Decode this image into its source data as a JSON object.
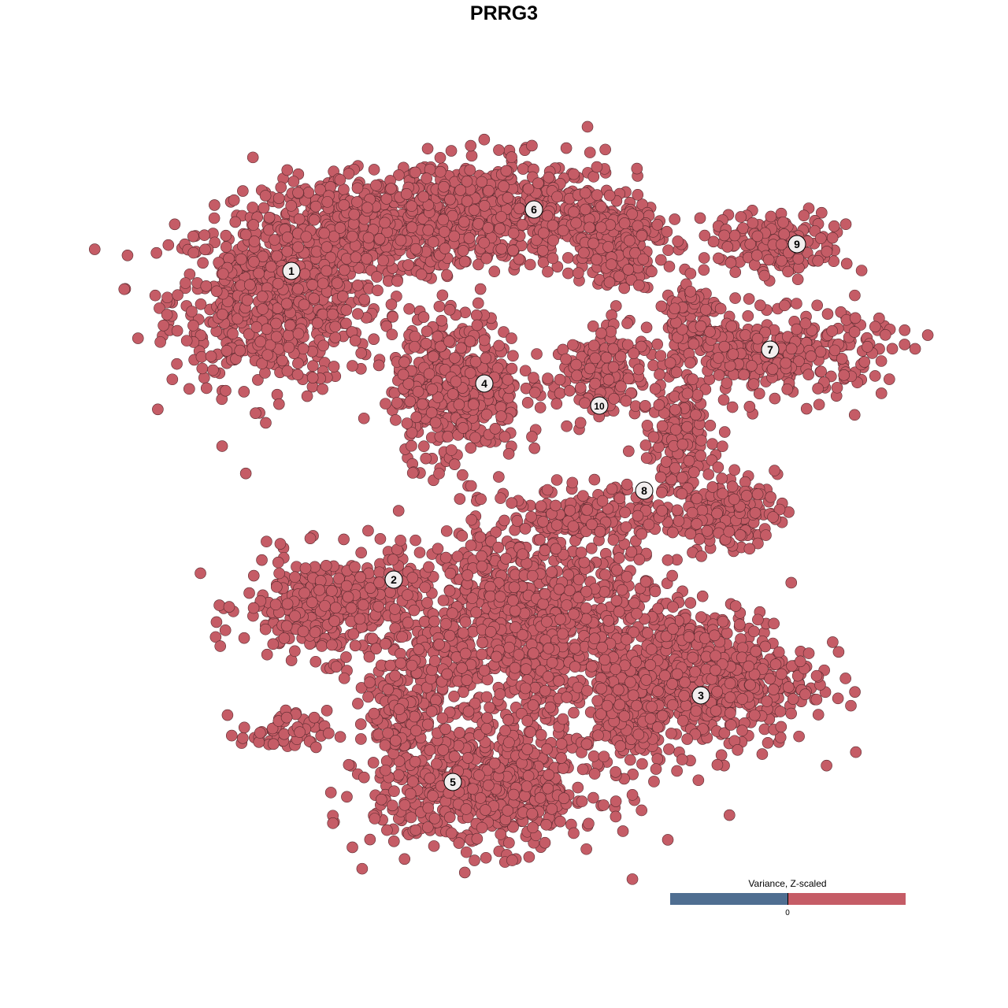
{
  "chart_data": {
    "type": "scatter",
    "title": "PRRG3",
    "xlabel": "",
    "ylabel": "",
    "axes_visible": false,
    "grid": false,
    "point_color": "#c55c66",
    "point_edge_color": "#5a2a2f",
    "clusters": [
      {
        "label": "1",
        "label_pos": [
          -27,
          29.6
        ],
        "blobs": [
          {
            "center": [
              -29,
              26
            ],
            "spread": [
              12,
              10
            ],
            "n": 700
          },
          {
            "center": [
              -17,
              35
            ],
            "spread": [
              12,
              6
            ],
            "n": 450
          }
        ]
      },
      {
        "label": "2",
        "label_pos": [
          -14,
          -9.6
        ],
        "blobs": [
          {
            "center": [
              -22,
              -13
            ],
            "spread": [
              10,
              6
            ],
            "n": 380
          },
          {
            "center": [
              -28,
              -29
            ],
            "spread": [
              5,
              2.5
            ],
            "n": 60
          }
        ]
      },
      {
        "label": "3",
        "label_pos": [
          25,
          -24.3
        ],
        "blobs": [
          {
            "center": [
              26,
              -22
            ],
            "spread": [
              12,
              8
            ],
            "n": 600
          },
          {
            "center": [
              16,
              -26
            ],
            "spread": [
              4,
              7
            ],
            "n": 150
          }
        ]
      },
      {
        "label": "4",
        "label_pos": [
          -2.5,
          15.3
        ],
        "blobs": [
          {
            "center": [
              -6,
              15
            ],
            "spread": [
              7.5,
              8.5
            ],
            "n": 450
          }
        ]
      },
      {
        "label": "5",
        "label_pos": [
          -6.5,
          -35.3
        ],
        "blobs": [
          {
            "center": [
              -2,
              -36
            ],
            "spread": [
              13,
              7
            ],
            "n": 650
          },
          {
            "center": [
              4,
              -15
            ],
            "spread": [
              15,
              12
            ],
            "n": 1100
          },
          {
            "center": [
              -12,
              -26
            ],
            "spread": [
              5,
              8
            ],
            "n": 200
          }
        ]
      },
      {
        "label": "6",
        "label_pos": [
          3.8,
          37.4
        ],
        "blobs": [
          {
            "center": [
              0,
              37
            ],
            "spread": [
              16,
              6
            ],
            "n": 600
          },
          {
            "center": [
              14,
              33
            ],
            "spread": [
              6,
              5
            ],
            "n": 200
          }
        ]
      },
      {
        "label": "7",
        "label_pos": [
          33.8,
          19.6
        ],
        "blobs": [
          {
            "center": [
              34,
              19
            ],
            "spread": [
              13,
              5
            ],
            "n": 350
          },
          {
            "center": [
              24,
              24
            ],
            "spread": [
              4,
              4
            ],
            "n": 80
          }
        ]
      },
      {
        "label": "8",
        "label_pos": [
          17.8,
          1.7
        ],
        "blobs": [
          {
            "center": [
              22,
              8
            ],
            "spread": [
              4,
              6
            ],
            "n": 160
          },
          {
            "center": [
              28,
              -1
            ],
            "spread": [
              6,
              4
            ],
            "n": 180
          },
          {
            "center": [
              12,
              -1
            ],
            "spread": [
              8,
              3
            ],
            "n": 150
          }
        ]
      },
      {
        "label": "9",
        "label_pos": [
          37.2,
          33
        ],
        "blobs": [
          {
            "center": [
              35,
              33
            ],
            "spread": [
              8,
              3.5
            ],
            "n": 160
          }
        ]
      },
      {
        "label": "10",
        "label_pos": [
          12.1,
          12.5
        ],
        "blobs": [
          {
            "center": [
              12,
              16
            ],
            "spread": [
              5,
              6
            ],
            "n": 160
          }
        ]
      }
    ],
    "xlim": [
      -64,
      64
    ],
    "ylim": [
      -64,
      64
    ],
    "legend": {
      "title": "Variance, Z-scaled",
      "tick_labels": [
        "0"
      ],
      "low_color": "#4f6e91",
      "high_color": "#c55c66",
      "placement": "bottom-right"
    }
  }
}
